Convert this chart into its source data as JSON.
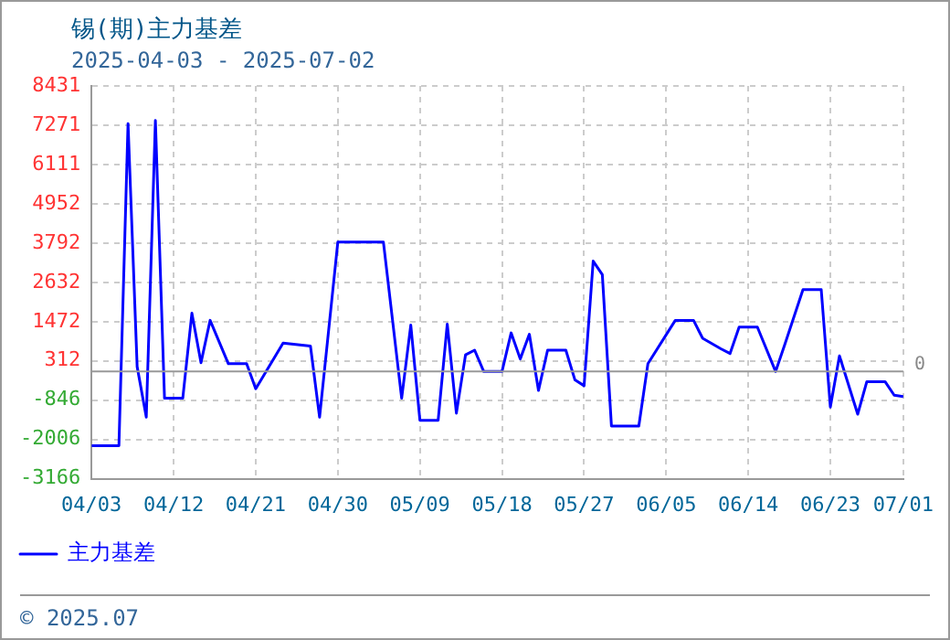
{
  "chart_data": {
    "type": "line",
    "title": "锡(期)主力基差",
    "subtitle": "2025-04-03 - 2025-07-02",
    "annotations": [
      "© 2025.07"
    ],
    "x": [
      "2025-04-03",
      "2025-04-06",
      "2025-04-07",
      "2025-04-08",
      "2025-04-09",
      "2025-04-10",
      "2025-04-11",
      "2025-04-13",
      "2025-04-14",
      "2025-04-15",
      "2025-04-16",
      "2025-04-18",
      "2025-04-20",
      "2025-04-21",
      "2025-04-24",
      "2025-04-27",
      "2025-04-28",
      "2025-04-30",
      "2025-05-05",
      "2025-05-07",
      "2025-05-08",
      "2025-05-09",
      "2025-05-11",
      "2025-05-12",
      "2025-05-13",
      "2025-05-14",
      "2025-05-15",
      "2025-05-16",
      "2025-05-18",
      "2025-05-19",
      "2025-05-20",
      "2025-05-21",
      "2025-05-22",
      "2025-05-23",
      "2025-05-25",
      "2025-05-26",
      "2025-05-27",
      "2025-05-28",
      "2025-05-29",
      "2025-05-30",
      "2025-06-02",
      "2025-06-03",
      "2025-06-06",
      "2025-06-08",
      "2025-06-09",
      "2025-06-11",
      "2025-06-12",
      "2025-06-13",
      "2025-06-15",
      "2025-06-17",
      "2025-06-18",
      "2025-06-20",
      "2025-06-22",
      "2025-06-23",
      "2025-06-24",
      "2025-06-26",
      "2025-06-27",
      "2025-06-29",
      "2025-06-30",
      "2025-07-01"
    ],
    "series": [
      {
        "name": "主力基差",
        "color": "#0000ff",
        "values": [
          -2190,
          -2190,
          7320,
          140,
          -1350,
          7410,
          -790,
          -790,
          1720,
          260,
          1510,
          230,
          230,
          -510,
          840,
          750,
          -1350,
          3820,
          3820,
          -790,
          1370,
          -1440,
          -1440,
          1400,
          -1230,
          490,
          630,
          0,
          0,
          1140,
          370,
          1100,
          -560,
          630,
          630,
          -250,
          -420,
          3260,
          2860,
          -1610,
          -1610,
          230,
          1510,
          1510,
          980,
          670,
          530,
          1310,
          1310,
          0,
          790,
          2420,
          2420,
          -1050,
          460,
          -1260,
          -300,
          -300,
          -700,
          -740
        ]
      }
    ],
    "xlim": [
      "2025-04-03",
      "2025-07-01"
    ],
    "xticks": [
      {
        "value": "2025-04-03",
        "label": "04/03"
      },
      {
        "value": "2025-04-12",
        "label": "04/12"
      },
      {
        "value": "2025-04-21",
        "label": "04/21"
      },
      {
        "value": "2025-04-30",
        "label": "04/30"
      },
      {
        "value": "2025-05-09",
        "label": "05/09"
      },
      {
        "value": "2025-05-18",
        "label": "05/18"
      },
      {
        "value": "2025-05-27",
        "label": "05/27"
      },
      {
        "value": "2025-06-05",
        "label": "06/05"
      },
      {
        "value": "2025-06-14",
        "label": "06/14"
      },
      {
        "value": "2025-06-23",
        "label": "06/23"
      },
      {
        "value": "2025-07-01",
        "label": "07/01"
      }
    ],
    "ylim": [
      -3166,
      8431
    ],
    "yticks": [
      -3166,
      -2006,
      -846,
      312,
      1472,
      2632,
      3792,
      4952,
      6111,
      7271,
      8431
    ],
    "ref_lines": [
      {
        "axis": "y",
        "value": 0,
        "label": "0",
        "color": "#999999"
      }
    ],
    "grid": true,
    "legend": "bottom left",
    "marker": "none",
    "line_style": "solid"
  }
}
